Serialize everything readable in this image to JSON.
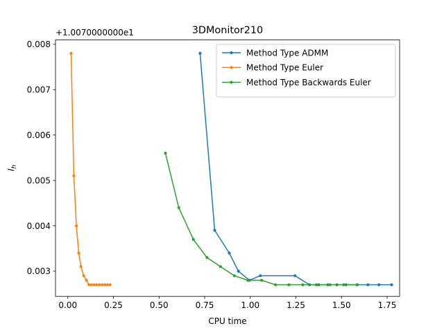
{
  "chart_data": {
    "type": "line",
    "title": "3DMonitor210",
    "xlabel": "CPU time",
    "ylabel": "I_h",
    "ylabel_main": "I",
    "ylabel_sub": "h",
    "offset_text": "+1.0070000000e1",
    "xlim": [
      -0.0675,
      1.8185
    ],
    "ylim": [
      0.002445,
      0.008095
    ],
    "xticks": [
      0.0,
      0.25,
      0.5,
      0.75,
      1.0,
      1.25,
      1.5,
      1.75
    ],
    "xtick_labels": [
      "0.00",
      "0.25",
      "0.50",
      "0.75",
      "1.00",
      "1.25",
      "1.50",
      "1.75"
    ],
    "yticks": [
      0.003,
      0.004,
      0.005,
      0.006,
      0.007,
      0.008
    ],
    "ytick_labels": [
      "0.003",
      "0.004",
      "0.005",
      "0.006",
      "0.007",
      "0.008"
    ],
    "grid": false,
    "legend_position": "top-right",
    "series": [
      {
        "name": "Method Type ADMM",
        "color": "#1f77b4",
        "x": [
          0.725,
          0.805,
          0.885,
          0.935,
          0.995,
          1.055,
          1.245,
          1.325,
          1.375,
          1.425,
          1.475,
          1.525,
          1.585,
          1.645,
          1.705,
          1.775
        ],
        "y": [
          0.0078,
          0.0039,
          0.0034,
          0.003,
          0.0028,
          0.0029,
          0.0029,
          0.0027,
          0.0027,
          0.0027,
          0.0027,
          0.0027,
          0.0027,
          0.0027,
          0.0027,
          0.0027
        ]
      },
      {
        "name": "Method Type Euler",
        "color": "#ff7f0e",
        "x": [
          0.018,
          0.033,
          0.047,
          0.06,
          0.072,
          0.087,
          0.102,
          0.116,
          0.13,
          0.145,
          0.159,
          0.173,
          0.188,
          0.203,
          0.217,
          0.232
        ],
        "y": [
          0.0078,
          0.0051,
          0.004,
          0.0034,
          0.0031,
          0.0029,
          0.0028,
          0.0027,
          0.0027,
          0.0027,
          0.0027,
          0.0027,
          0.0027,
          0.0027,
          0.0027,
          0.0027
        ]
      },
      {
        "name": "Method Type Backwards Euler",
        "color": "#2ca02c",
        "x": [
          0.535,
          0.608,
          0.688,
          0.763,
          0.837,
          0.913,
          0.987,
          1.062,
          1.138,
          1.212,
          1.288,
          1.362,
          1.437,
          1.512,
          1.587
        ],
        "y": [
          0.0056,
          0.0044,
          0.0037,
          0.0033,
          0.0031,
          0.0029,
          0.0028,
          0.0028,
          0.0027,
          0.0027,
          0.0027,
          0.0027,
          0.0027,
          0.0027,
          0.0027
        ]
      }
    ]
  }
}
